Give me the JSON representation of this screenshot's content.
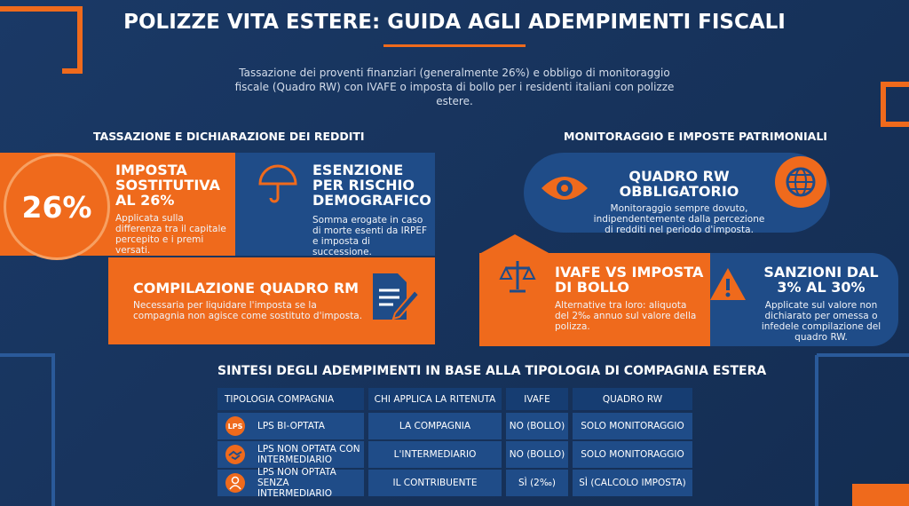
{
  "header": {
    "title": "POLIZZE VITA ESTERE: GUIDA AGLI ADEMPIMENTI FISCALI",
    "subtitle": "Tassazione dei proventi finanziari (generalmente 26%) e obbligo di monitoraggio fiscale (Quadro RW) con IVAFE o imposta di bollo per i residenti italiani con polizze estere."
  },
  "left": {
    "heading": "TASSAZIONE E DICHIARAZIONE DEI REDDITI",
    "cards": [
      {
        "badge": "26%",
        "title": "IMPOSTA SOSTITUTIVA AL 26%",
        "text": "Applicata sulla differenza tra il capitale percepito e i premi versati."
      },
      {
        "title": "ESENZIONE PER RISCHIO DEMOGRAFICO",
        "text": "Somma erogate in caso di morte esenti da IRPEF e imposta di successione."
      },
      {
        "title": "COMPILAZIONE QUADRO RM",
        "text": "Necessaria per liquidare l'imposta se la compagnia non agisce come sostituto d'imposta."
      }
    ]
  },
  "right": {
    "heading": "MONITORAGGIO E IMPOSTE PATRIMONIALI",
    "cards": [
      {
        "title": "QUADRO RW OBBLIGATORIO",
        "text": "Monitoraggio sempre dovuto, indipendentemente dalla percezione di redditi nel periodo d'imposta."
      },
      {
        "title": "IVAFE VS IMPOSTA DI BOLLO",
        "text": "Alternative tra loro: aliquota del 2‰ annuo sul valore della polizza."
      },
      {
        "title": "SANZIONI DAL 3% AL 30%",
        "text": "Applicate sul valore non dichiarato per omessa o infedele compilazione del quadro RW."
      }
    ]
  },
  "table": {
    "title": "SINTESI DEGLI ADEMPIMENTI IN BASE ALLA TIPOLOGIA DI COMPAGNIA ESTERA",
    "headers": [
      "TIPOLOGIA COMPAGNIA",
      "CHI APPLICA LA RITENUTA",
      "IVAFE",
      "QUADRO RW"
    ],
    "rows": [
      {
        "icon": "LPS",
        "cells": [
          "LPS BI-OPTATA",
          "LA COMPAGNIA",
          "NO (BOLLO)",
          "SOLO MONITORAGGIO"
        ]
      },
      {
        "cells": [
          "LPS NON OPTATA CON INTERMEDIARIO",
          "L'INTERMEDIARIO",
          "NO (BOLLO)",
          "SOLO MONITORAGGIO"
        ]
      },
      {
        "cells": [
          "LPS NON OPTATA SENZA INTERMEDIARIO",
          "IL CONTRIBUENTE",
          "SÌ (2‰)",
          "SÌ (CALCOLO IMPOSTA)"
        ]
      }
    ]
  }
}
